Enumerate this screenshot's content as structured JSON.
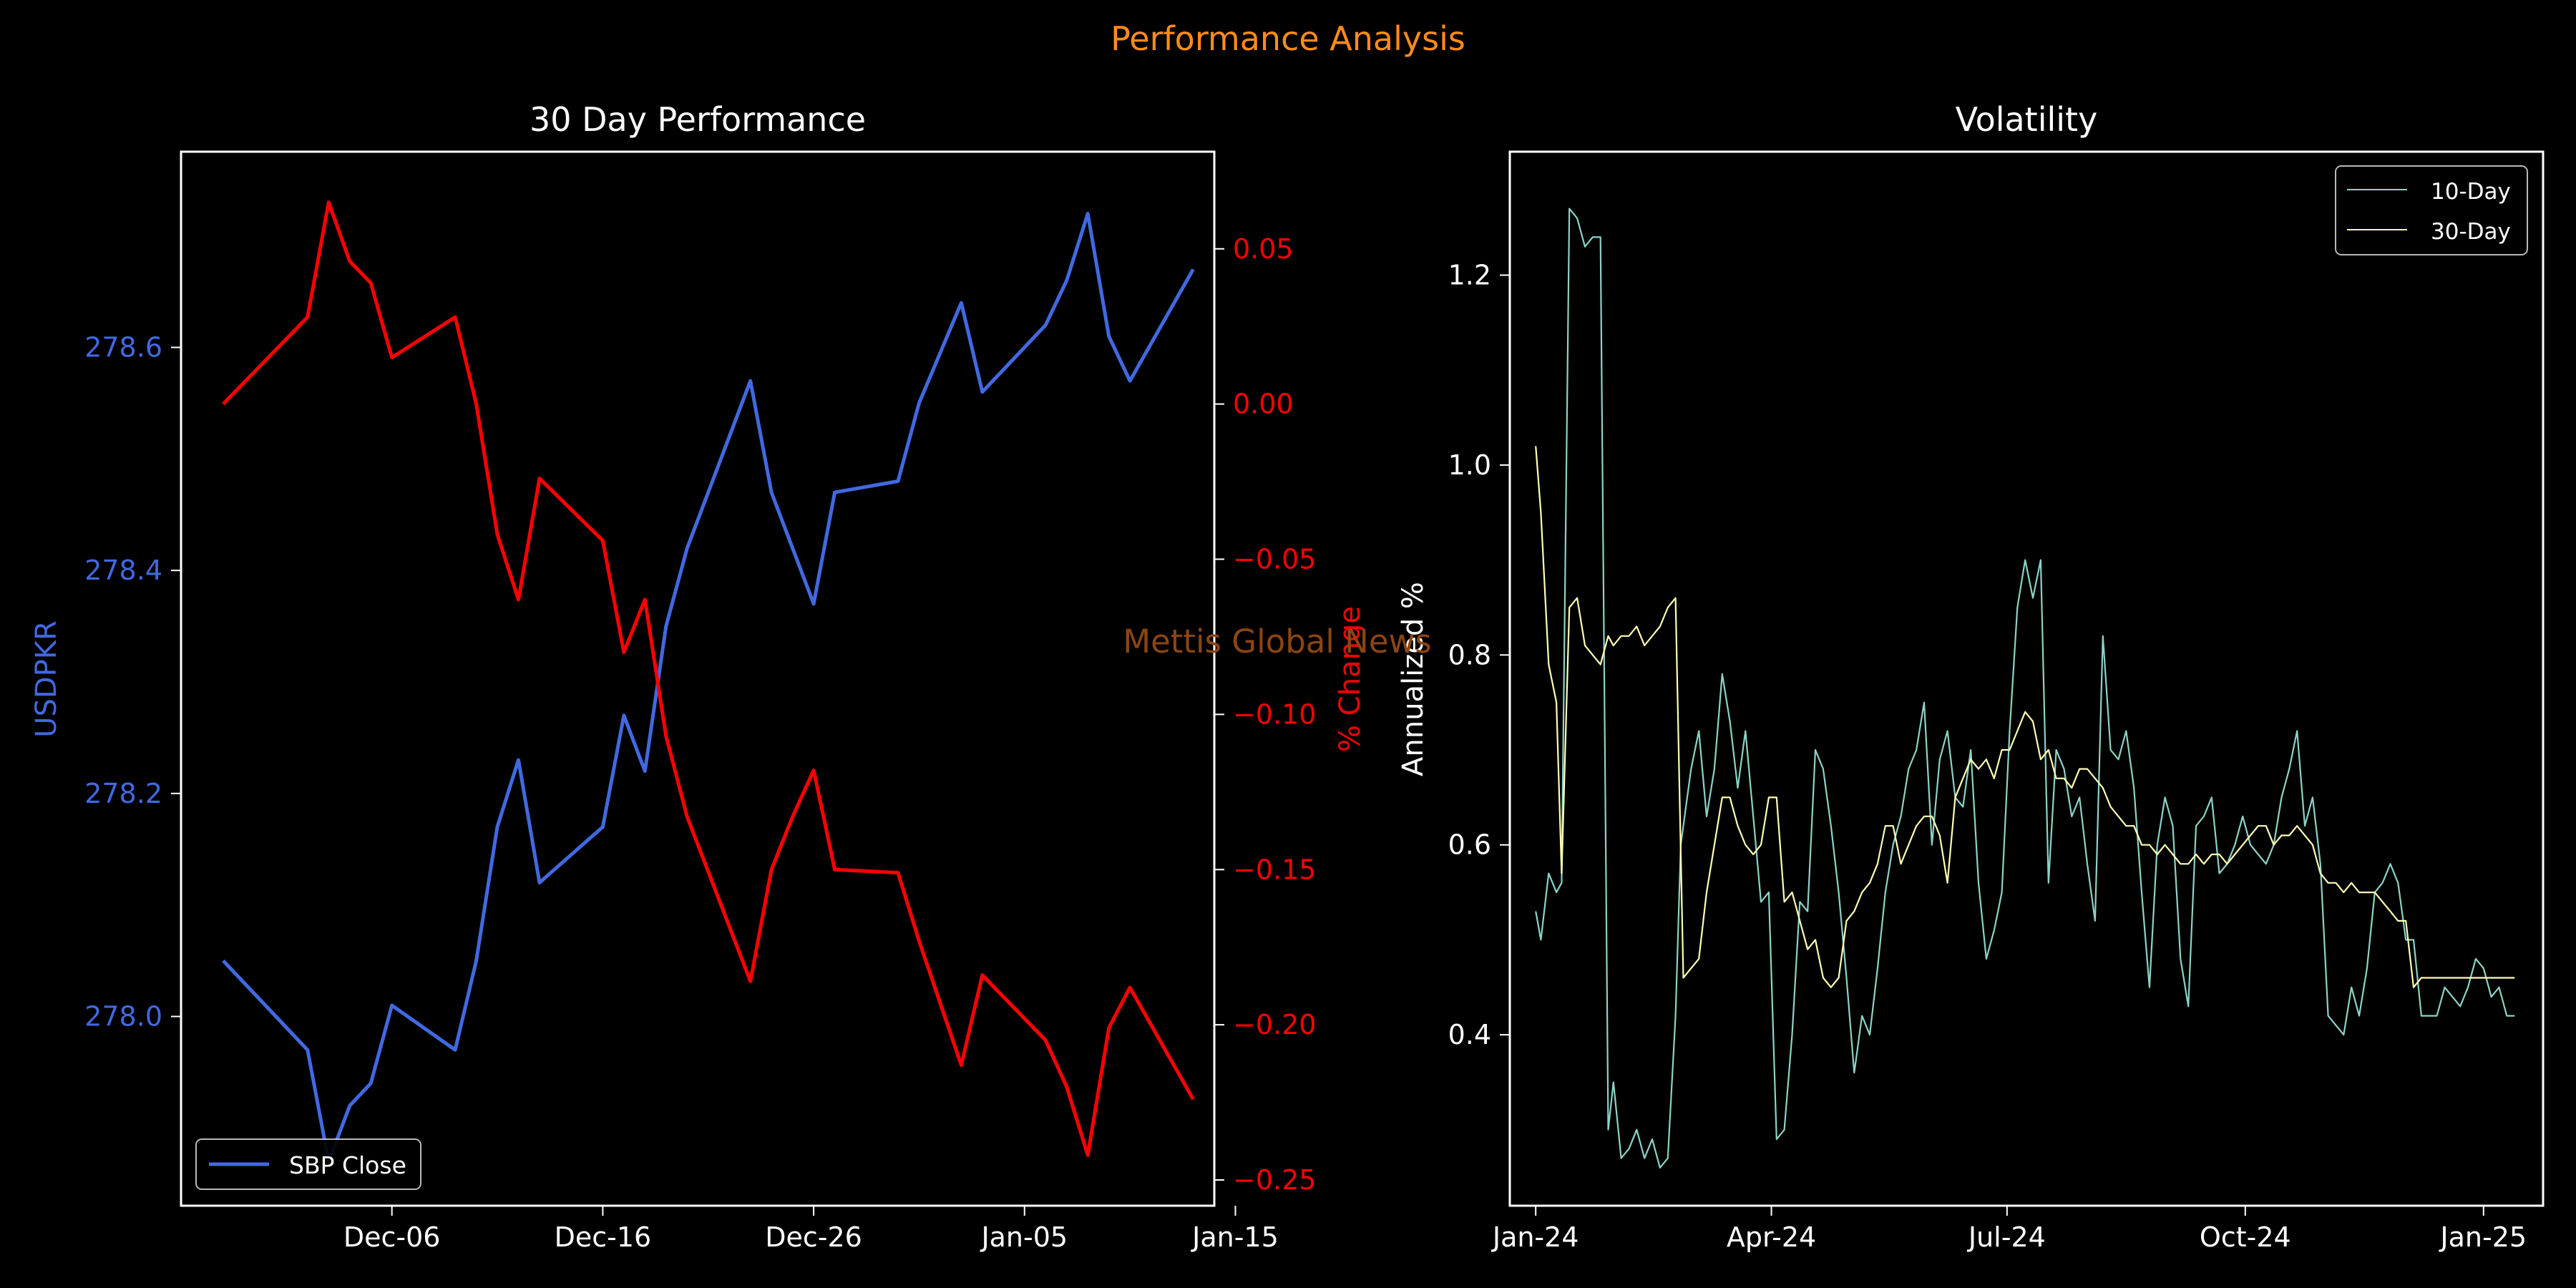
{
  "suptitle": "Performance Analysis",
  "watermark": "Mettis Global News",
  "colors": {
    "background": "#000000",
    "title": "#ff8c1a",
    "price": "#4169e1",
    "change": "#ff0000",
    "vol10": "#8dd3c7",
    "vol30": "#ffffb3",
    "text": "#ffffff",
    "watermark": "#8b4513"
  },
  "chart_data": [
    {
      "type": "line",
      "title": "30 Day Performance",
      "xlabel": "",
      "ylabel": "USDPKR",
      "y2label": "% Change",
      "x_ticks": [
        "Dec-06",
        "Dec-16",
        "Dec-26",
        "Jan-05",
        "Jan-15"
      ],
      "y_ticks": [
        "278.0",
        "278.2",
        "278.4",
        "278.6"
      ],
      "y2_ticks": [
        "0.05",
        "0.00",
        "−0.05",
        "−0.10",
        "−0.15",
        "−0.20",
        "−0.25"
      ],
      "xlim": [
        "2024-11-26",
        "2025-01-14"
      ],
      "ylim": [
        277.8303,
        278.7755
      ],
      "y2lim": [
        -0.2583,
        0.0813
      ],
      "legend": {
        "position": "lower-left",
        "entries": [
          "SBP Close"
        ]
      },
      "series": [
        {
          "name": "SBP Close",
          "axis": "left",
          "dates": [
            "2024-11-28",
            "2024-12-02",
            "2024-12-03",
            "2024-12-04",
            "2024-12-05",
            "2024-12-06",
            "2024-12-09",
            "2024-12-10",
            "2024-12-11",
            "2024-12-12",
            "2024-12-13",
            "2024-12-16",
            "2024-12-17",
            "2024-12-18",
            "2024-12-19",
            "2024-12-20",
            "2024-12-23",
            "2024-12-24",
            "2024-12-25",
            "2024-12-26",
            "2024-12-27",
            "2024-12-30",
            "2024-12-31",
            "2025-01-02",
            "2025-01-03",
            "2025-01-06",
            "2025-01-07",
            "2025-01-08",
            "2025-01-09",
            "2025-01-10",
            "2025-01-13"
          ],
          "values": [
            278.05,
            277.97,
            277.87,
            277.92,
            277.94,
            278.01,
            277.97,
            278.05,
            278.17,
            278.23,
            278.12,
            278.17,
            278.27,
            278.22,
            278.35,
            278.42,
            278.57,
            278.47,
            278.42,
            278.37,
            278.47,
            278.48,
            278.55,
            278.64,
            278.56,
            278.62,
            278.66,
            278.72,
            278.61,
            278.57,
            278.67
          ]
        },
        {
          "name": "% Change",
          "axis": "right",
          "dates": [
            "2024-11-28",
            "2024-12-02",
            "2024-12-03",
            "2024-12-04",
            "2024-12-05",
            "2024-12-06",
            "2024-12-09",
            "2024-12-10",
            "2024-12-11",
            "2024-12-12",
            "2024-12-13",
            "2024-12-16",
            "2024-12-17",
            "2024-12-18",
            "2024-12-19",
            "2024-12-20",
            "2024-12-23",
            "2024-12-24",
            "2024-12-25",
            "2024-12-26",
            "2024-12-27",
            "2024-12-30",
            "2024-12-31",
            "2025-01-02",
            "2025-01-03",
            "2025-01-06",
            "2025-01-07",
            "2025-01-08",
            "2025-01-09",
            "2025-01-10",
            "2025-01-13"
          ],
          "values": [
            0.0,
            0.028,
            0.065,
            0.046,
            0.039,
            0.015,
            0.028,
            0.0,
            -0.042,
            -0.063,
            -0.024,
            -0.044,
            -0.08,
            -0.063,
            -0.107,
            -0.133,
            -0.186,
            -0.15,
            -0.133,
            -0.118,
            -0.15,
            -0.151,
            -0.173,
            -0.213,
            -0.184,
            -0.205,
            -0.22,
            -0.242,
            -0.201,
            -0.188,
            -0.224
          ]
        }
      ]
    },
    {
      "type": "line",
      "title": "Volatility",
      "xlabel": "",
      "ylabel": "Annualized %",
      "x_ticks": [
        "Jan-24",
        "Apr-24",
        "Jul-24",
        "Oct-24",
        "Jan-25"
      ],
      "y_ticks": [
        "0.4",
        "0.6",
        "0.8",
        "1.0",
        "1.2"
      ],
      "xlim": [
        "2023-12-22",
        "2025-01-24"
      ],
      "ylim": [
        0.22,
        1.33
      ],
      "legend": {
        "position": "top-right",
        "entries": [
          "10-Day",
          "30-Day"
        ]
      },
      "series": [
        {
          "name": "10-Day",
          "dates": [
            "2024-01-01",
            "2024-01-03",
            "2024-01-06",
            "2024-01-09",
            "2024-01-11",
            "2024-01-14",
            "2024-01-17",
            "2024-01-20",
            "2024-01-23",
            "2024-01-26",
            "2024-01-29",
            "2024-01-31",
            "2024-02-03",
            "2024-02-06",
            "2024-02-09",
            "2024-02-12",
            "2024-02-15",
            "2024-02-18",
            "2024-02-21",
            "2024-02-24",
            "2024-02-26",
            "2024-03-01",
            "2024-03-04",
            "2024-03-07",
            "2024-03-10",
            "2024-03-13",
            "2024-03-16",
            "2024-03-19",
            "2024-03-22",
            "2024-03-25",
            "2024-03-28",
            "2024-03-31",
            "2024-04-03",
            "2024-04-06",
            "2024-04-09",
            "2024-04-12",
            "2024-04-15",
            "2024-04-18",
            "2024-04-21",
            "2024-04-24",
            "2024-04-27",
            "2024-04-30",
            "2024-05-03",
            "2024-05-06",
            "2024-05-09",
            "2024-05-12",
            "2024-05-15",
            "2024-05-18",
            "2024-05-21",
            "2024-05-24",
            "2024-05-27",
            "2024-05-30",
            "2024-06-02",
            "2024-06-05",
            "2024-06-08",
            "2024-06-11",
            "2024-06-14",
            "2024-06-17",
            "2024-06-20",
            "2024-06-23",
            "2024-06-26",
            "2024-06-29",
            "2024-07-02",
            "2024-07-05",
            "2024-07-08",
            "2024-07-11",
            "2024-07-14",
            "2024-07-17",
            "2024-07-20",
            "2024-07-23",
            "2024-07-26",
            "2024-07-29",
            "2024-08-01",
            "2024-08-04",
            "2024-08-07",
            "2024-08-10",
            "2024-08-13",
            "2024-08-16",
            "2024-08-19",
            "2024-08-22",
            "2024-08-25",
            "2024-08-28",
            "2024-08-31",
            "2024-09-03",
            "2024-09-06",
            "2024-09-09",
            "2024-09-12",
            "2024-09-15",
            "2024-09-18",
            "2024-09-21",
            "2024-09-24",
            "2024-09-27",
            "2024-09-30",
            "2024-10-03",
            "2024-10-06",
            "2024-10-09",
            "2024-10-12",
            "2024-10-15",
            "2024-10-18",
            "2024-10-21",
            "2024-10-24",
            "2024-10-27",
            "2024-10-30",
            "2024-11-02",
            "2024-11-05",
            "2024-11-08",
            "2024-11-11",
            "2024-11-14",
            "2024-11-17",
            "2024-11-20",
            "2024-11-23",
            "2024-11-26",
            "2024-11-29",
            "2024-12-02",
            "2024-12-05",
            "2024-12-08",
            "2024-12-11",
            "2024-12-14",
            "2024-12-17",
            "2024-12-20",
            "2024-12-23",
            "2024-12-26",
            "2024-12-29",
            "2025-01-01",
            "2025-01-04",
            "2025-01-07",
            "2025-01-10",
            "2025-01-13"
          ],
          "values": [
            0.53,
            0.5,
            0.57,
            0.55,
            0.56,
            1.27,
            1.26,
            1.23,
            1.24,
            1.24,
            0.3,
            0.35,
            0.27,
            0.28,
            0.3,
            0.27,
            0.29,
            0.26,
            0.27,
            0.42,
            0.6,
            0.68,
            0.72,
            0.63,
            0.68,
            0.78,
            0.73,
            0.66,
            0.72,
            0.63,
            0.54,
            0.55,
            0.29,
            0.3,
            0.4,
            0.54,
            0.53,
            0.7,
            0.68,
            0.62,
            0.55,
            0.46,
            0.36,
            0.42,
            0.4,
            0.47,
            0.55,
            0.6,
            0.63,
            0.68,
            0.7,
            0.75,
            0.6,
            0.69,
            0.72,
            0.65,
            0.64,
            0.7,
            0.56,
            0.48,
            0.51,
            0.55,
            0.72,
            0.85,
            0.9,
            0.86,
            0.9,
            0.56,
            0.7,
            0.68,
            0.63,
            0.65,
            0.58,
            0.52,
            0.82,
            0.7,
            0.69,
            0.72,
            0.66,
            0.55,
            0.45,
            0.6,
            0.65,
            0.62,
            0.48,
            0.43,
            0.62,
            0.63,
            0.65,
            0.57,
            0.58,
            0.6,
            0.63,
            0.6,
            0.59,
            0.58,
            0.6,
            0.65,
            0.68,
            0.72,
            0.62,
            0.65,
            0.58,
            0.42,
            0.41,
            0.4,
            0.45,
            0.42,
            0.47,
            0.55,
            0.56,
            0.58,
            0.56,
            0.5,
            0.5,
            0.42,
            0.42,
            0.42,
            0.45,
            0.44,
            0.43,
            0.45,
            0.48,
            0.47,
            0.44,
            0.45,
            0.42,
            0.42
          ],
          "note_values_hidden": false
        },
        {
          "name": "30-Day",
          "dates": [
            "2024-01-01",
            "2024-01-03",
            "2024-01-06",
            "2024-01-09",
            "2024-01-11",
            "2024-01-14",
            "2024-01-17",
            "2024-01-20",
            "2024-01-23",
            "2024-01-26",
            "2024-01-29",
            "2024-01-31",
            "2024-02-03",
            "2024-02-06",
            "2024-02-09",
            "2024-02-12",
            "2024-02-15",
            "2024-02-18",
            "2024-02-21",
            "2024-02-24",
            "2024-02-27",
            "2024-03-01",
            "2024-03-04",
            "2024-03-07",
            "2024-03-10",
            "2024-03-13",
            "2024-03-16",
            "2024-03-19",
            "2024-03-22",
            "2024-03-25",
            "2024-03-28",
            "2024-03-31",
            "2024-04-03",
            "2024-04-06",
            "2024-04-09",
            "2024-04-12",
            "2024-04-15",
            "2024-04-18",
            "2024-04-21",
            "2024-04-24",
            "2024-04-27",
            "2024-04-30",
            "2024-05-03",
            "2024-05-06",
            "2024-05-09",
            "2024-05-12",
            "2024-05-15",
            "2024-05-18",
            "2024-05-21",
            "2024-05-24",
            "2024-05-27",
            "2024-05-30",
            "2024-06-02",
            "2024-06-05",
            "2024-06-08",
            "2024-06-11",
            "2024-06-14",
            "2024-06-17",
            "2024-06-20",
            "2024-06-23",
            "2024-06-26",
            "2024-06-29",
            "2024-07-02",
            "2024-07-05",
            "2024-07-08",
            "2024-07-11",
            "2024-07-14",
            "2024-07-17",
            "2024-07-20",
            "2024-07-23",
            "2024-07-26",
            "2024-07-29",
            "2024-08-01",
            "2024-08-04",
            "2024-08-07",
            "2024-08-10",
            "2024-08-13",
            "2024-08-16",
            "2024-08-19",
            "2024-08-22",
            "2024-08-25",
            "2024-08-28",
            "2024-08-31",
            "2024-09-03",
            "2024-09-06",
            "2024-09-09",
            "2024-09-12",
            "2024-09-15",
            "2024-09-18",
            "2024-09-21",
            "2024-09-24",
            "2024-09-27",
            "2024-09-30",
            "2024-10-03",
            "2024-10-06",
            "2024-10-09",
            "2024-10-12",
            "2024-10-15",
            "2024-10-18",
            "2024-10-21",
            "2024-10-24",
            "2024-10-27",
            "2024-10-30",
            "2024-11-02",
            "2024-11-05",
            "2024-11-08",
            "2024-11-11",
            "2024-11-14",
            "2024-11-17",
            "2024-11-20",
            "2024-11-23",
            "2024-11-26",
            "2024-11-29",
            "2024-12-02",
            "2024-12-05",
            "2024-12-08",
            "2024-12-11",
            "2024-12-14",
            "2024-12-17",
            "2024-12-20",
            "2024-12-23",
            "2024-12-26",
            "2024-12-29",
            "2025-01-01",
            "2025-01-04",
            "2025-01-07",
            "2025-01-10",
            "2025-01-13"
          ],
          "values": [
            1.02,
            0.95,
            0.79,
            0.75,
            0.57,
            0.85,
            0.86,
            0.81,
            0.8,
            0.79,
            0.82,
            0.81,
            0.82,
            0.82,
            0.83,
            0.81,
            0.82,
            0.83,
            0.85,
            0.86,
            0.46,
            0.47,
            0.48,
            0.55,
            0.6,
            0.65,
            0.65,
            0.62,
            0.6,
            0.59,
            0.6,
            0.65,
            0.65,
            0.54,
            0.55,
            0.52,
            0.49,
            0.5,
            0.46,
            0.45,
            0.46,
            0.52,
            0.53,
            0.55,
            0.56,
            0.58,
            0.62,
            0.62,
            0.58,
            0.6,
            0.62,
            0.63,
            0.63,
            0.61,
            0.56,
            0.65,
            0.67,
            0.69,
            0.68,
            0.69,
            0.67,
            0.7,
            0.7,
            0.72,
            0.74,
            0.73,
            0.69,
            0.7,
            0.67,
            0.67,
            0.66,
            0.68,
            0.68,
            0.67,
            0.66,
            0.64,
            0.63,
            0.62,
            0.62,
            0.6,
            0.6,
            0.59,
            0.6,
            0.59,
            0.58,
            0.58,
            0.59,
            0.58,
            0.59,
            0.59,
            0.58,
            0.59,
            0.6,
            0.61,
            0.62,
            0.62,
            0.6,
            0.61,
            0.61,
            0.62,
            0.61,
            0.6,
            0.57,
            0.56,
            0.56,
            0.55,
            0.56,
            0.55,
            0.55,
            0.55,
            0.54,
            0.53,
            0.52,
            0.52,
            0.45,
            0.46,
            0.46,
            0.46,
            0.46,
            0.46,
            0.46,
            0.46,
            0.46,
            0.46,
            0.46,
            0.46,
            0.46,
            0.46
          ]
        }
      ]
    }
  ]
}
